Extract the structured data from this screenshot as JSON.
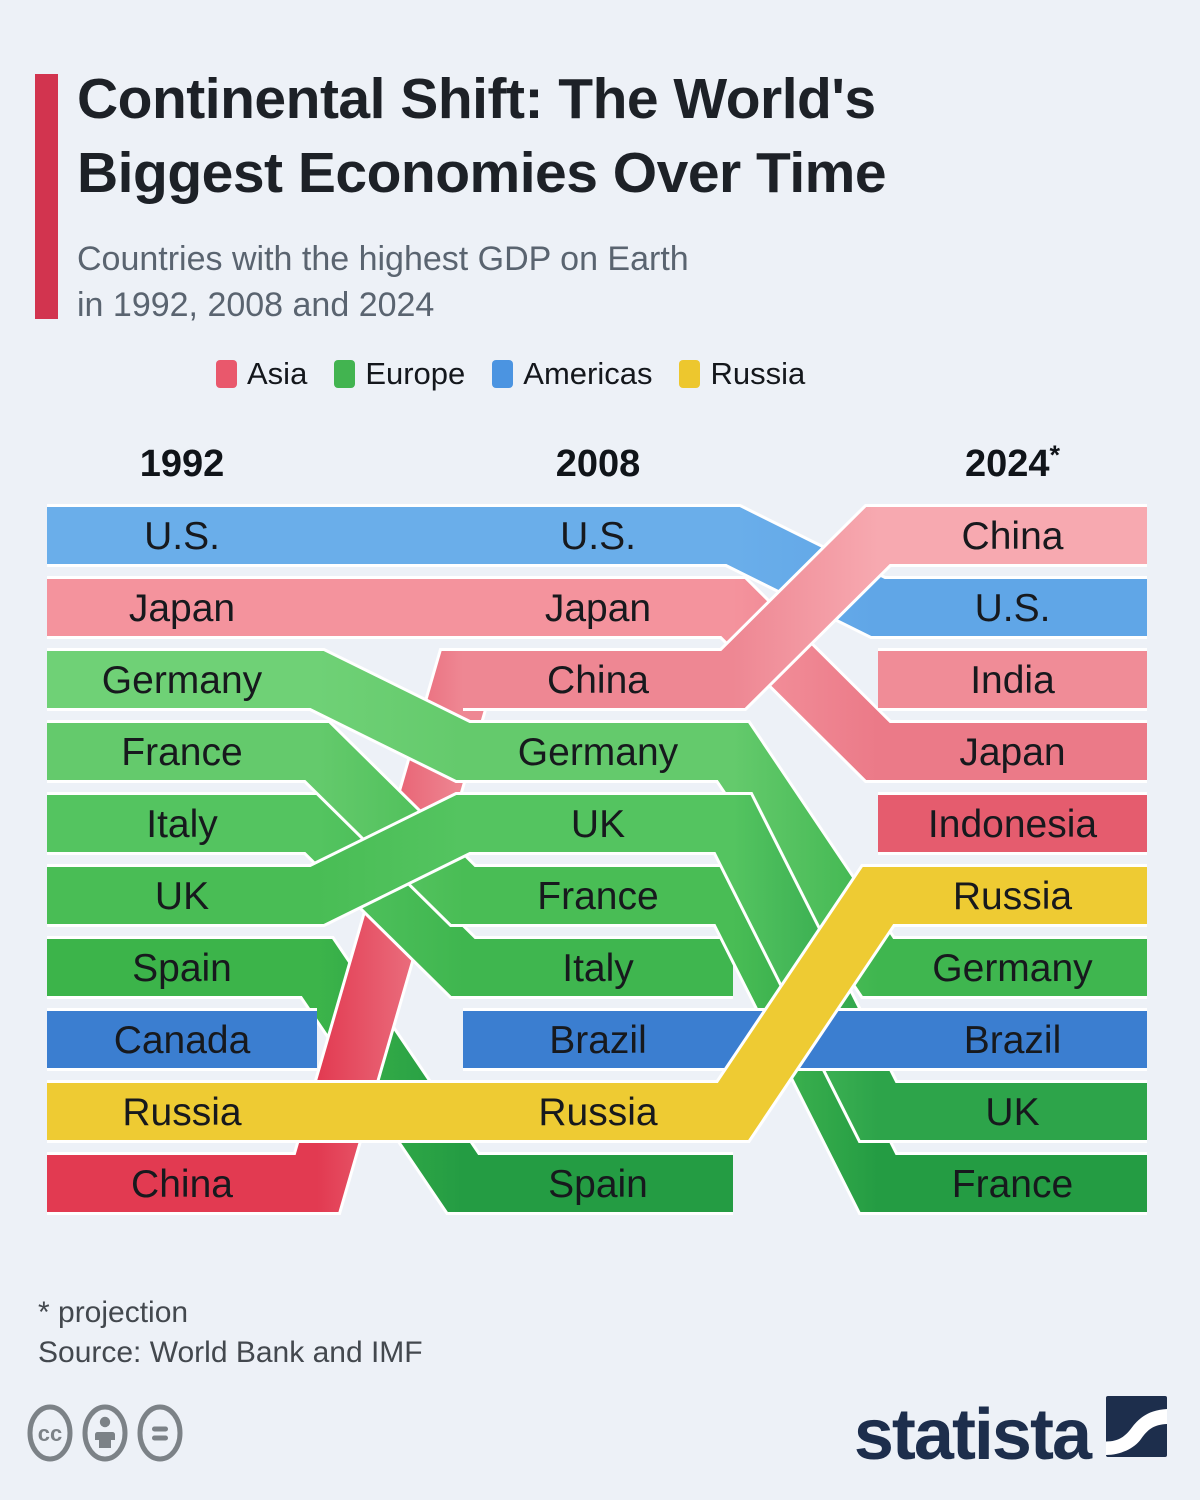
{
  "header": {
    "accent_color": "#d2344f",
    "title_line1": "Continental Shift: The World's",
    "title_line2": "Biggest Economies Over Time",
    "subtitle_line1": "Countries with the highest GDP on Earth",
    "subtitle_line2": "in 1992, 2008 and 2024"
  },
  "legend": {
    "items": [
      {
        "label": "Asia",
        "color": "#e9586c"
      },
      {
        "label": "Europe",
        "color": "#42b450"
      },
      {
        "label": "Americas",
        "color": "#4b94e1"
      },
      {
        "label": "Russia",
        "color": "#edc72e"
      }
    ]
  },
  "chart_data": {
    "type": "bump",
    "description": "Rank-flow (bump) chart of the world's 10 biggest economies by GDP rank in 1992, 2008 and 2024 (projection). Bands are colored by continent group and connect each country's rank across years; null means the country is outside the top 10 that year.",
    "categories": [
      "1992",
      "2008",
      "2024*"
    ],
    "columns": [
      {
        "label": "1992"
      },
      {
        "label": "2008"
      },
      {
        "label": "2024*"
      }
    ],
    "rankings": {
      "1992": [
        "U.S.",
        "Japan",
        "Germany",
        "France",
        "Italy",
        "UK",
        "Spain",
        "Canada",
        "Russia",
        "China"
      ],
      "2008": [
        "U.S.",
        "Japan",
        "China",
        "Germany",
        "UK",
        "France",
        "Italy",
        "Brazil",
        "Russia",
        "Spain"
      ],
      "2024": [
        "China",
        "U.S.",
        "India",
        "Japan",
        "Indonesia",
        "Russia",
        "Germany",
        "Brazil",
        "UK",
        "France"
      ]
    },
    "series": [
      {
        "name": "U.S.",
        "group": "Americas",
        "ranks": [
          1,
          1,
          2
        ],
        "colors": [
          "#6aaeea",
          "#6aaeea",
          "#60a6e7"
        ]
      },
      {
        "name": "Japan",
        "group": "Asia",
        "ranks": [
          2,
          2,
          4
        ],
        "colors": [
          "#f4939d",
          "#f4939d",
          "#eb7a88"
        ]
      },
      {
        "name": "Germany",
        "group": "Europe",
        "ranks": [
          3,
          4,
          7
        ],
        "colors": [
          "#6fd176",
          "#64ca6c",
          "#3fb64f"
        ]
      },
      {
        "name": "France",
        "group": "Europe",
        "ranks": [
          4,
          6,
          10
        ],
        "colors": [
          "#64ca6c",
          "#49bd55",
          "#249c43"
        ]
      },
      {
        "name": "Italy",
        "group": "Europe",
        "ranks": [
          5,
          7,
          null
        ],
        "colors": [
          "#54c460",
          "#3fb64f",
          null
        ]
      },
      {
        "name": "UK",
        "group": "Europe",
        "ranks": [
          6,
          5,
          9
        ],
        "colors": [
          "#49bd55",
          "#54c460",
          "#2da44a"
        ]
      },
      {
        "name": "Spain",
        "group": "Europe",
        "ranks": [
          7,
          10,
          null
        ],
        "colors": [
          "#3cb44a",
          "#249c43",
          null
        ]
      },
      {
        "name": "Canada",
        "group": "Americas",
        "ranks": [
          8,
          null,
          null
        ],
        "colors": [
          "#3b7ed0",
          null,
          null
        ]
      },
      {
        "name": "Russia",
        "group": "Russia",
        "ranks": [
          9,
          9,
          6
        ],
        "colors": [
          "#eecb33",
          "#eecb33",
          "#eecb33"
        ]
      },
      {
        "name": "China",
        "group": "Asia",
        "ranks": [
          10,
          3,
          1
        ],
        "colors": [
          "#e23a51",
          "#ee8793",
          "#f7a9b0"
        ]
      },
      {
        "name": "Brazil",
        "group": "Americas",
        "ranks": [
          null,
          8,
          8
        ],
        "colors": [
          null,
          "#3b7ed0",
          "#3b7ed0"
        ]
      },
      {
        "name": "India",
        "group": "Asia",
        "ranks": [
          null,
          null,
          3
        ],
        "colors": [
          null,
          null,
          "#f08c97"
        ]
      },
      {
        "name": "Indonesia",
        "group": "Asia",
        "ranks": [
          null,
          null,
          5
        ],
        "colors": [
          null,
          null,
          "#e55c6e"
        ]
      }
    ],
    "legend_position": "top",
    "grid": false
  },
  "footer": {
    "note": "* projection",
    "source": "Source: World Bank and IMF"
  },
  "branding": {
    "logo_text": "statista",
    "logo_color": "#1d2e4c",
    "icon_color": "#7c8287"
  }
}
